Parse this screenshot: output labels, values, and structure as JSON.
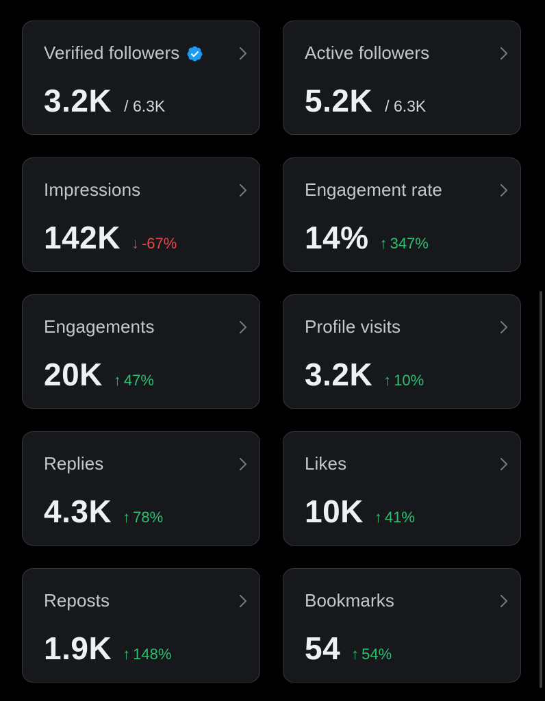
{
  "theme": {
    "background": "#000000",
    "card_background": "#16181c",
    "card_border": "#33363b",
    "positive_color": "#2fbf71",
    "negative_color": "#e5484d",
    "verified_badge_color": "#1d9bf0"
  },
  "cards": [
    {
      "title": "Verified followers",
      "verified_icon": "verified-badge-icon",
      "value": "3.2K",
      "total": "/ 6.3K"
    },
    {
      "title": "Active followers",
      "value": "5.2K",
      "total": "/ 6.3K"
    },
    {
      "title": "Impressions",
      "value": "142K",
      "change": {
        "direction": "down",
        "arrow": "↓",
        "text": "-67%"
      }
    },
    {
      "title": "Engagement rate",
      "value": "14%",
      "change": {
        "direction": "up",
        "arrow": "↑",
        "text": "347%"
      }
    },
    {
      "title": "Engagements",
      "value": "20K",
      "change": {
        "direction": "up",
        "arrow": "↑",
        "text": "47%"
      }
    },
    {
      "title": "Profile visits",
      "value": "3.2K",
      "change": {
        "direction": "up",
        "arrow": "↑",
        "text": "10%"
      }
    },
    {
      "title": "Replies",
      "value": "4.3K",
      "change": {
        "direction": "up",
        "arrow": "↑",
        "text": "78%"
      }
    },
    {
      "title": "Likes",
      "value": "10K",
      "change": {
        "direction": "up",
        "arrow": "↑",
        "text": "41%"
      }
    },
    {
      "title": "Reposts",
      "value": "1.9K",
      "change": {
        "direction": "up",
        "arrow": "↑",
        "text": "148%"
      }
    },
    {
      "title": "Bookmarks",
      "value": "54",
      "change": {
        "direction": "up",
        "arrow": "↑",
        "text": "54%"
      }
    }
  ]
}
